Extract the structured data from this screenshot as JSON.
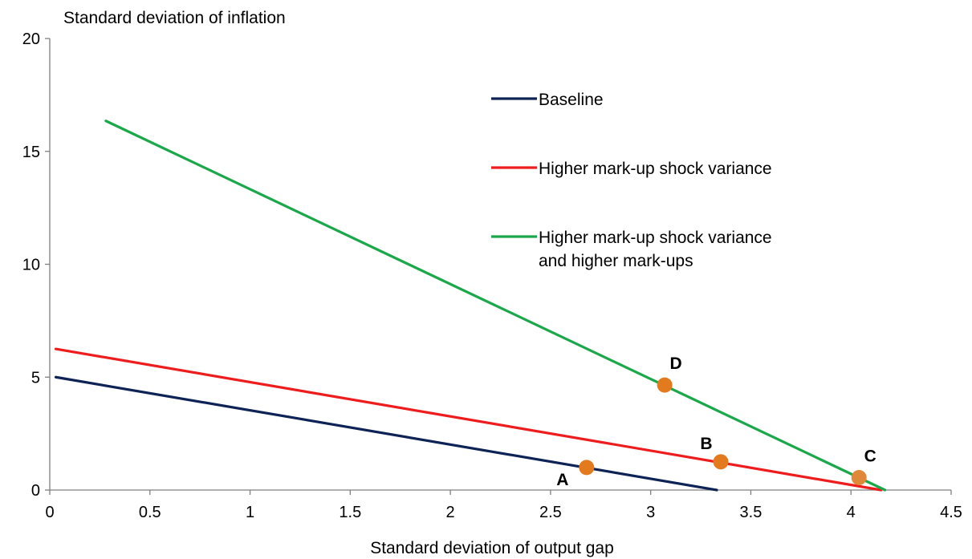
{
  "chart_data": {
    "type": "line",
    "ylabel": "Standard deviation of inflation",
    "xlabel": "Standard deviation of output gap",
    "xlim": [
      0,
      4.5
    ],
    "ylim": [
      0,
      20
    ],
    "x_ticks": [
      0,
      0.5,
      1,
      1.5,
      2,
      2.5,
      3,
      3.5,
      4,
      4.5
    ],
    "x_tick_labels": [
      "0",
      "0.5",
      "1",
      "1.5",
      "2",
      "2.5",
      "3",
      "3.5",
      "4",
      "4.5"
    ],
    "y_ticks": [
      0,
      5,
      10,
      15,
      20
    ],
    "y_tick_labels": [
      "0",
      "5",
      "10",
      "15",
      "20"
    ],
    "grid": false,
    "legend_position": "top-right",
    "series": [
      {
        "name": "Baseline",
        "color": "#0d2356",
        "points": [
          [
            0.03,
            5.0
          ],
          [
            3.33,
            0.0
          ]
        ]
      },
      {
        "name": "Higher mark-up shock variance",
        "color": "#ee1c1c",
        "points": [
          [
            0.03,
            6.25
          ],
          [
            4.15,
            0.0
          ]
        ]
      },
      {
        "name": "Higher mark-up shock variance and higher mark-ups",
        "color": "#1aa84a",
        "points": [
          [
            0.28,
            16.35
          ],
          [
            4.17,
            0.0
          ]
        ]
      }
    ],
    "annotations": [
      {
        "label": "A",
        "x": 2.68,
        "y": 1.0,
        "label_position": "below-left",
        "color": "#e37a1e"
      },
      {
        "label": "B",
        "x": 3.35,
        "y": 1.25,
        "label_position": "above-left",
        "color": "#e37a1e"
      },
      {
        "label": "C",
        "x": 4.04,
        "y": 0.55,
        "label_position": "above-right",
        "color": "#e0883a"
      },
      {
        "label": "D",
        "x": 3.07,
        "y": 4.65,
        "label_position": "above-right",
        "color": "#e37a1e"
      }
    ]
  }
}
